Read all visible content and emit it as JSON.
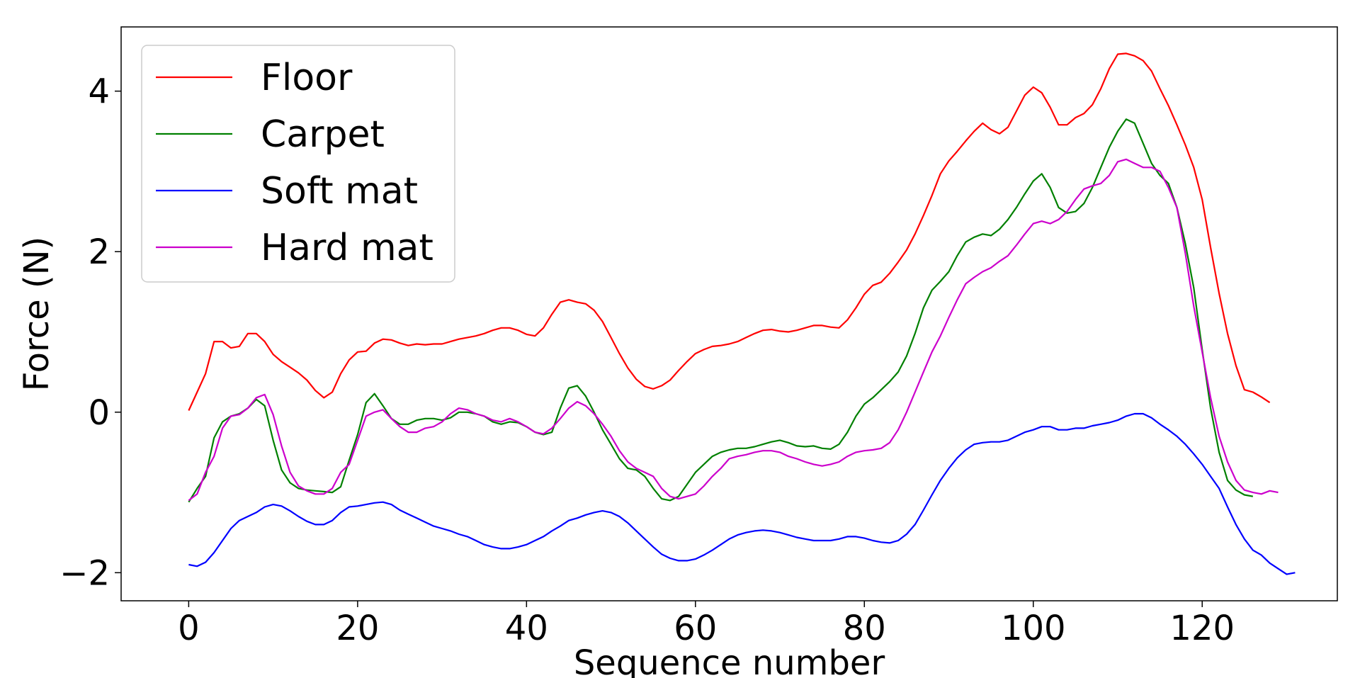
{
  "chart_data": {
    "type": "line",
    "title": "",
    "xlabel": "Sequence number",
    "ylabel": "Force (N)",
    "xlim": [
      -8,
      136
    ],
    "ylim": [
      -2.35,
      4.8
    ],
    "xticks": [
      0,
      20,
      40,
      60,
      80,
      100,
      120
    ],
    "yticks": [
      -2,
      0,
      2,
      4
    ],
    "ytick_labels": [
      "−2",
      "0",
      "2",
      "4"
    ],
    "grid": false,
    "legend": "top-left",
    "series": [
      {
        "name": "Floor",
        "color": "#ff0000",
        "x_start": 0,
        "values": [
          0.02,
          0.25,
          0.48,
          0.88,
          0.88,
          0.8,
          0.82,
          0.98,
          0.98,
          0.88,
          0.72,
          0.63,
          0.56,
          0.49,
          0.4,
          0.27,
          0.18,
          0.25,
          0.48,
          0.65,
          0.75,
          0.76,
          0.86,
          0.91,
          0.9,
          0.86,
          0.83,
          0.85,
          0.84,
          0.85,
          0.85,
          0.88,
          0.91,
          0.93,
          0.95,
          0.98,
          1.02,
          1.05,
          1.05,
          1.02,
          0.97,
          0.95,
          1.05,
          1.22,
          1.37,
          1.4,
          1.37,
          1.35,
          1.27,
          1.13,
          0.93,
          0.73,
          0.55,
          0.41,
          0.32,
          0.29,
          0.33,
          0.4,
          0.52,
          0.63,
          0.73,
          0.78,
          0.82,
          0.83,
          0.85,
          0.88,
          0.93,
          0.98,
          1.02,
          1.03,
          1.01,
          1.0,
          1.02,
          1.05,
          1.08,
          1.08,
          1.06,
          1.05,
          1.15,
          1.3,
          1.47,
          1.58,
          1.62,
          1.73,
          1.87,
          2.02,
          2.22,
          2.45,
          2.7,
          2.97,
          3.13,
          3.25,
          3.38,
          3.5,
          3.6,
          3.52,
          3.47,
          3.55,
          3.75,
          3.95,
          4.05,
          3.98,
          3.8,
          3.58,
          3.58,
          3.67,
          3.72,
          3.83,
          4.03,
          4.28,
          4.46,
          4.47,
          4.44,
          4.38,
          4.25,
          4.03,
          3.82,
          3.58,
          3.33,
          3.05,
          2.65,
          2.05,
          1.48,
          0.98,
          0.58,
          0.28,
          0.25,
          0.19,
          0.12
        ]
      },
      {
        "name": "Carpet",
        "color": "#008000",
        "x_start": 0,
        "values": [
          -1.12,
          -0.95,
          -0.8,
          -0.32,
          -0.12,
          -0.05,
          -0.02,
          0.05,
          0.16,
          0.08,
          -0.35,
          -0.72,
          -0.88,
          -0.95,
          -0.97,
          -0.98,
          -0.99,
          -1.0,
          -0.93,
          -0.6,
          -0.28,
          0.12,
          0.23,
          0.08,
          -0.08,
          -0.15,
          -0.15,
          -0.1,
          -0.08,
          -0.08,
          -0.1,
          -0.07,
          0.0,
          0.0,
          -0.02,
          -0.05,
          -0.12,
          -0.15,
          -0.12,
          -0.13,
          -0.18,
          -0.25,
          -0.28,
          -0.25,
          0.05,
          0.3,
          0.33,
          0.2,
          0.0,
          -0.22,
          -0.4,
          -0.58,
          -0.7,
          -0.72,
          -0.8,
          -0.95,
          -1.08,
          -1.1,
          -1.05,
          -0.9,
          -0.75,
          -0.65,
          -0.55,
          -0.5,
          -0.47,
          -0.45,
          -0.45,
          -0.43,
          -0.4,
          -0.37,
          -0.35,
          -0.38,
          -0.42,
          -0.43,
          -0.42,
          -0.45,
          -0.46,
          -0.4,
          -0.25,
          -0.05,
          0.1,
          0.18,
          0.28,
          0.38,
          0.5,
          0.7,
          0.98,
          1.3,
          1.52,
          1.63,
          1.75,
          1.95,
          2.12,
          2.18,
          2.22,
          2.2,
          2.28,
          2.4,
          2.55,
          2.72,
          2.88,
          2.97,
          2.8,
          2.55,
          2.48,
          2.5,
          2.6,
          2.8,
          3.05,
          3.3,
          3.5,
          3.65,
          3.6,
          3.35,
          3.1,
          2.95,
          2.85,
          2.55,
          2.1,
          1.55,
          0.78,
          0.05,
          -0.5,
          -0.85,
          -0.97,
          -1.03,
          -1.05
        ]
      },
      {
        "name": "Soft mat",
        "color": "#0000ff",
        "x_start": 0,
        "values": [
          -1.9,
          -1.92,
          -1.87,
          -1.75,
          -1.6,
          -1.45,
          -1.35,
          -1.3,
          -1.25,
          -1.18,
          -1.15,
          -1.17,
          -1.23,
          -1.3,
          -1.36,
          -1.4,
          -1.4,
          -1.35,
          -1.25,
          -1.18,
          -1.17,
          -1.15,
          -1.13,
          -1.12,
          -1.15,
          -1.22,
          -1.27,
          -1.32,
          -1.37,
          -1.42,
          -1.45,
          -1.48,
          -1.52,
          -1.55,
          -1.6,
          -1.65,
          -1.68,
          -1.7,
          -1.7,
          -1.68,
          -1.65,
          -1.6,
          -1.55,
          -1.48,
          -1.42,
          -1.35,
          -1.32,
          -1.28,
          -1.25,
          -1.23,
          -1.25,
          -1.3,
          -1.38,
          -1.48,
          -1.58,
          -1.68,
          -1.77,
          -1.82,
          -1.85,
          -1.85,
          -1.83,
          -1.78,
          -1.72,
          -1.65,
          -1.58,
          -1.53,
          -1.5,
          -1.48,
          -1.47,
          -1.48,
          -1.5,
          -1.53,
          -1.56,
          -1.58,
          -1.6,
          -1.6,
          -1.6,
          -1.58,
          -1.55,
          -1.55,
          -1.57,
          -1.6,
          -1.62,
          -1.63,
          -1.6,
          -1.52,
          -1.4,
          -1.22,
          -1.03,
          -0.85,
          -0.7,
          -0.57,
          -0.47,
          -0.4,
          -0.38,
          -0.37,
          -0.37,
          -0.35,
          -0.3,
          -0.25,
          -0.22,
          -0.18,
          -0.18,
          -0.22,
          -0.22,
          -0.2,
          -0.2,
          -0.17,
          -0.15,
          -0.13,
          -0.1,
          -0.05,
          -0.02,
          -0.02,
          -0.07,
          -0.15,
          -0.22,
          -0.3,
          -0.4,
          -0.52,
          -0.65,
          -0.8,
          -0.95,
          -1.18,
          -1.4,
          -1.58,
          -1.72,
          -1.78,
          -1.88,
          -1.95,
          -2.02,
          -2.0
        ]
      },
      {
        "name": "Hard mat",
        "color": "#cc00cc",
        "x_start": 0,
        "values": [
          -1.1,
          -1.02,
          -0.75,
          -0.55,
          -0.2,
          -0.05,
          -0.03,
          0.05,
          0.18,
          0.22,
          -0.03,
          -0.42,
          -0.75,
          -0.92,
          -0.98,
          -1.02,
          -1.02,
          -0.95,
          -0.75,
          -0.65,
          -0.35,
          -0.05,
          0.0,
          0.03,
          -0.08,
          -0.18,
          -0.25,
          -0.25,
          -0.2,
          -0.18,
          -0.12,
          -0.02,
          0.05,
          0.03,
          -0.02,
          -0.05,
          -0.1,
          -0.12,
          -0.08,
          -0.12,
          -0.18,
          -0.25,
          -0.27,
          -0.2,
          -0.08,
          0.05,
          0.13,
          0.08,
          -0.02,
          -0.15,
          -0.3,
          -0.48,
          -0.62,
          -0.7,
          -0.75,
          -0.8,
          -0.95,
          -1.05,
          -1.08,
          -1.05,
          -1.02,
          -0.92,
          -0.8,
          -0.7,
          -0.58,
          -0.55,
          -0.53,
          -0.5,
          -0.48,
          -0.48,
          -0.5,
          -0.55,
          -0.58,
          -0.62,
          -0.65,
          -0.67,
          -0.65,
          -0.62,
          -0.55,
          -0.5,
          -0.48,
          -0.47,
          -0.45,
          -0.38,
          -0.22,
          0.0,
          0.25,
          0.5,
          0.75,
          0.95,
          1.18,
          1.4,
          1.6,
          1.68,
          1.75,
          1.8,
          1.88,
          1.95,
          2.08,
          2.22,
          2.35,
          2.38,
          2.35,
          2.4,
          2.5,
          2.65,
          2.78,
          2.82,
          2.85,
          2.95,
          3.12,
          3.15,
          3.1,
          3.05,
          3.05,
          3.0,
          2.8,
          2.55,
          1.98,
          1.32,
          0.75,
          0.18,
          -0.3,
          -0.62,
          -0.85,
          -0.97,
          -1.0,
          -1.02,
          -0.98,
          -1.0
        ]
      }
    ]
  }
}
